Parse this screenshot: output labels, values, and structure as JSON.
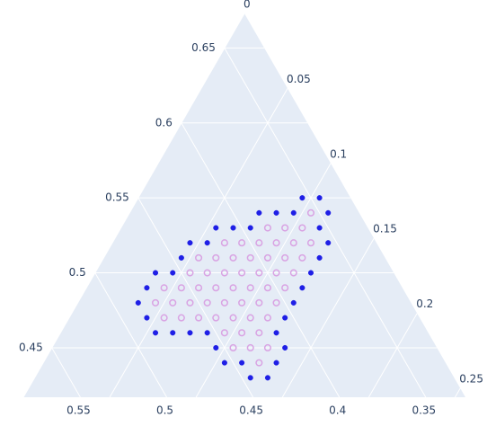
{
  "chart_data": {
    "type": "ternary",
    "alim": [
      0.417,
      0.673
    ],
    "blim": [
      0.327,
      0.583
    ],
    "clim": [
      0,
      0.256
    ],
    "aticks": [
      0.45,
      0.5,
      0.55,
      0.6,
      0.65
    ],
    "bticks": [
      0.35,
      0.4,
      0.45,
      0.5,
      0.55
    ],
    "cticks": [
      0,
      0.05,
      0.1,
      0.15,
      0.2,
      0.25
    ],
    "grid": true,
    "series": [
      {
        "color": "#1f1fe6",
        "symbol": "circle",
        "a": [
          0.55,
          0.55,
          0.54,
          0.54,
          0.54,
          0.54,
          0.53,
          0.53,
          0.53,
          0.53,
          0.52,
          0.52,
          0.52,
          0.51,
          0.51,
          0.5,
          0.5,
          0.5,
          0.49,
          0.49,
          0.48,
          0.48,
          0.47,
          0.47,
          0.46,
          0.46,
          0.46,
          0.46,
          0.46,
          0.45,
          0.45,
          0.44,
          0.44,
          0.44,
          0.43,
          0.43
        ],
        "b": [
          0.355,
          0.345,
          0.385,
          0.375,
          0.365,
          0.345,
          0.415,
          0.405,
          0.395,
          0.355,
          0.435,
          0.425,
          0.355,
          0.445,
          0.365,
          0.465,
          0.455,
          0.375,
          0.475,
          0.385,
          0.485,
          0.395,
          0.485,
          0.405,
          0.485,
          0.475,
          0.465,
          0.455,
          0.415,
          0.455,
          0.415,
          0.455,
          0.445,
          0.425,
          0.445,
          0.435
        ],
        "c": [
          0.095,
          0.105,
          0.075,
          0.085,
          0.095,
          0.115,
          0.055,
          0.065,
          0.075,
          0.115,
          0.045,
          0.055,
          0.125,
          0.045,
          0.125,
          0.035,
          0.045,
          0.125,
          0.035,
          0.125,
          0.035,
          0.125,
          0.045,
          0.125,
          0.055,
          0.065,
          0.075,
          0.085,
          0.125,
          0.095,
          0.135,
          0.105,
          0.115,
          0.135,
          0.125,
          0.135
        ]
      },
      {
        "color": "#d9a3e3",
        "symbol": "circle-open",
        "a": [
          0.54,
          0.53,
          0.53,
          0.53,
          0.52,
          0.52,
          0.52,
          0.52,
          0.52,
          0.52,
          0.51,
          0.51,
          0.51,
          0.51,
          0.51,
          0.51,
          0.51,
          0.5,
          0.5,
          0.5,
          0.5,
          0.5,
          0.5,
          0.5,
          0.49,
          0.49,
          0.49,
          0.49,
          0.49,
          0.49,
          0.49,
          0.49,
          0.48,
          0.48,
          0.48,
          0.48,
          0.48,
          0.48,
          0.48,
          0.48,
          0.47,
          0.47,
          0.47,
          0.47,
          0.47,
          0.47,
          0.47,
          0.46,
          0.46,
          0.46,
          0.45,
          0.45,
          0.45,
          0.44
        ],
        "b": [
          0.355,
          0.385,
          0.375,
          0.365,
          0.415,
          0.405,
          0.395,
          0.385,
          0.375,
          0.365,
          0.435,
          0.425,
          0.415,
          0.405,
          0.395,
          0.385,
          0.375,
          0.445,
          0.435,
          0.425,
          0.415,
          0.405,
          0.395,
          0.385,
          0.465,
          0.455,
          0.445,
          0.435,
          0.425,
          0.415,
          0.405,
          0.395,
          0.475,
          0.465,
          0.455,
          0.445,
          0.435,
          0.425,
          0.415,
          0.405,
          0.475,
          0.465,
          0.455,
          0.445,
          0.435,
          0.425,
          0.415,
          0.445,
          0.435,
          0.425,
          0.445,
          0.435,
          0.425,
          0.435
        ],
        "c": [
          0.105,
          0.085,
          0.095,
          0.105,
          0.065,
          0.075,
          0.085,
          0.095,
          0.105,
          0.115,
          0.055,
          0.065,
          0.075,
          0.085,
          0.095,
          0.105,
          0.115,
          0.055,
          0.065,
          0.075,
          0.085,
          0.095,
          0.105,
          0.115,
          0.045,
          0.055,
          0.065,
          0.075,
          0.085,
          0.095,
          0.105,
          0.115,
          0.045,
          0.055,
          0.065,
          0.075,
          0.085,
          0.095,
          0.105,
          0.115,
          0.055,
          0.065,
          0.075,
          0.085,
          0.095,
          0.105,
          0.115,
          0.095,
          0.105,
          0.115,
          0.105,
          0.115,
          0.125,
          0.125
        ]
      }
    ]
  }
}
